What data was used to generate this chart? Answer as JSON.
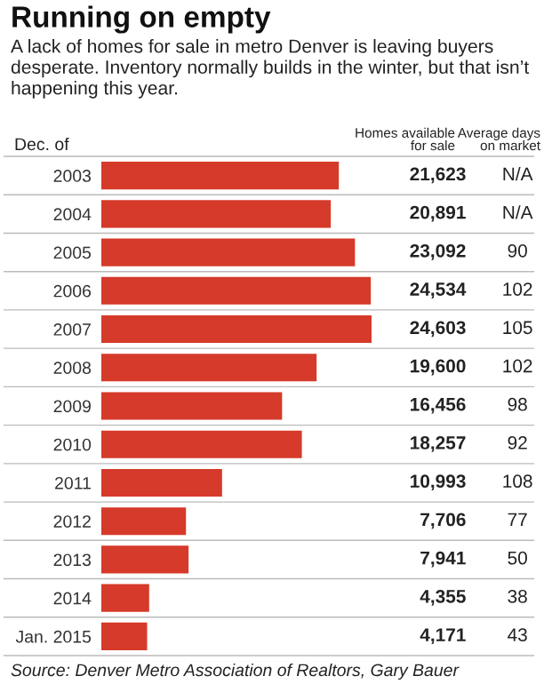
{
  "chart_data": {
    "type": "bar",
    "orientation": "horizontal",
    "title": "Running on empty",
    "subtitle": "A lack of homes for sale in metro Denver is leaving buyers desperate. Inventory normally builds in the winter, but that isn’t happening this year.",
    "ylabel": "Dec. of",
    "xlabel": "Homes available\nfor sale",
    "categories": [
      "2003",
      "2004",
      "2005",
      "2006",
      "2007",
      "2008",
      "2009",
      "2010",
      "2011",
      "2012",
      "2013",
      "2014",
      "Jan. 2015"
    ],
    "values": [
      21623,
      20891,
      23092,
      24534,
      24603,
      19600,
      16456,
      18257,
      10993,
      7706,
      7941,
      4355,
      4171
    ],
    "value_labels": [
      "21,623",
      "20,891",
      "23,092",
      "24,534",
      "24,603",
      "19,600",
      "16,456",
      "18,257",
      "10,993",
      "7,706",
      "7,941",
      "4,355",
      "4,171"
    ],
    "color": "#d63a2a",
    "annotations": [
      "Average days\non market",
      "N/A",
      "N/A",
      "90",
      "102",
      "105",
      "102",
      "98",
      "92",
      "108",
      "77",
      "50",
      "38",
      "43",
      "Source: Denver Metro Association of Realtors, Gary Bauer"
    ],
    "grid": false,
    "legend": false,
    "tick_labels": "y"
  }
}
